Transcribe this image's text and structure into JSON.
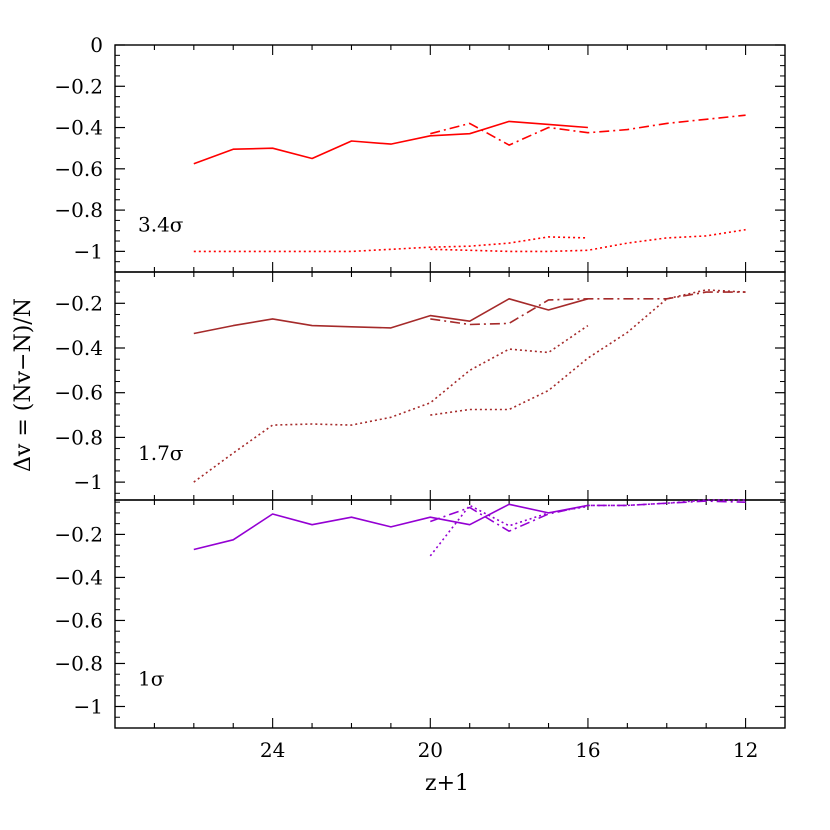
{
  "chart_data": {
    "type": "line",
    "xlabel": "z+1",
    "ylabel": "Δv = (Nv−N)/N",
    "xlim": [
      28,
      11
    ],
    "x_ticks": [
      {
        "value": 24,
        "label": "24"
      },
      {
        "value": 20,
        "label": "20"
      },
      {
        "value": 16,
        "label": "16"
      },
      {
        "value": 12,
        "label": "12"
      }
    ],
    "panels": [
      {
        "label": "3.4σ",
        "color": "#ff0000",
        "ylim": [
          -1.1,
          0
        ],
        "y_ticks": [
          {
            "value": 0,
            "label": "0"
          },
          {
            "value": -0.2,
            "label": "−0.2"
          },
          {
            "value": -0.4,
            "label": "−0.4"
          },
          {
            "value": -0.6,
            "label": "−0.6"
          },
          {
            "value": -0.8,
            "label": "−0.8"
          },
          {
            "value": -1,
            "label": "−1"
          }
        ],
        "series": [
          {
            "style": "solid",
            "x": [
              26,
              25,
              24,
              23,
              22,
              21,
              20,
              19,
              18,
              17,
              16
            ],
            "y": [
              -0.575,
              -0.505,
              -0.5,
              -0.55,
              -0.465,
              -0.48,
              -0.44,
              -0.43,
              -0.37,
              -0.385,
              -0.4
            ]
          },
          {
            "style": "dashdot",
            "x": [
              20,
              19,
              18,
              17,
              16,
              15,
              14,
              13,
              12
            ],
            "y": [
              -0.43,
              -0.38,
              -0.485,
              -0.4,
              -0.425,
              -0.41,
              -0.38,
              -0.36,
              -0.34
            ]
          },
          {
            "style": "dotted",
            "x": [
              26,
              25,
              24,
              23,
              22,
              21,
              20,
              19,
              18,
              17,
              16
            ],
            "y": [
              -1.0,
              -1.0,
              -1.0,
              -1.0,
              -1.0,
              -0.99,
              -0.98,
              -0.975,
              -0.96,
              -0.93,
              -0.935
            ]
          },
          {
            "style": "dotted",
            "x": [
              20,
              19,
              18,
              17,
              16,
              15,
              14,
              13,
              12
            ],
            "y": [
              -0.99,
              -0.995,
              -1.0,
              -1.0,
              -0.995,
              -0.96,
              -0.935,
              -0.925,
              -0.895
            ]
          }
        ]
      },
      {
        "label": "1.7σ",
        "color": "#a52a2a",
        "ylim": [
          -1.08,
          -0.06
        ],
        "y_ticks": [
          {
            "value": -0.2,
            "label": "−0.2"
          },
          {
            "value": -0.4,
            "label": "−0.4"
          },
          {
            "value": -0.6,
            "label": "−0.6"
          },
          {
            "value": -0.8,
            "label": "−0.8"
          },
          {
            "value": -1,
            "label": "−1"
          }
        ],
        "series": [
          {
            "style": "solid",
            "x": [
              26,
              25,
              24,
              23,
              22,
              21,
              20,
              19,
              18,
              17,
              16
            ],
            "y": [
              -0.335,
              -0.3,
              -0.27,
              -0.3,
              -0.305,
              -0.31,
              -0.255,
              -0.28,
              -0.18,
              -0.23,
              -0.18
            ]
          },
          {
            "style": "dashdot",
            "x": [
              20,
              19,
              18,
              17,
              16,
              15,
              14,
              13,
              12
            ],
            "y": [
              -0.27,
              -0.295,
              -0.29,
              -0.185,
              -0.18,
              -0.18,
              -0.18,
              -0.15,
              -0.15
            ]
          },
          {
            "style": "dotted",
            "x": [
              26,
              25,
              24,
              23,
              22,
              21,
              20,
              19,
              18,
              17,
              16
            ],
            "y": [
              -1.0,
              -0.87,
              -0.745,
              -0.74,
              -0.745,
              -0.71,
              -0.645,
              -0.5,
              -0.405,
              -0.42,
              -0.3
            ]
          },
          {
            "style": "dotted",
            "x": [
              20,
              19,
              18,
              17,
              16,
              15,
              14,
              13,
              12
            ],
            "y": [
              -0.7,
              -0.675,
              -0.675,
              -0.59,
              -0.445,
              -0.33,
              -0.18,
              -0.14,
              -0.15
            ]
          }
        ]
      },
      {
        "label": "1σ",
        "color": "#9400d3",
        "ylim": [
          -1.1,
          -0.04
        ],
        "y_ticks": [
          {
            "value": -0.2,
            "label": "−0.2"
          },
          {
            "value": -0.4,
            "label": "−0.4"
          },
          {
            "value": -0.6,
            "label": "−0.6"
          },
          {
            "value": -0.8,
            "label": "−0.8"
          },
          {
            "value": -1,
            "label": "−1"
          }
        ],
        "series": [
          {
            "style": "solid",
            "x": [
              26,
              25,
              24,
              23,
              22,
              21,
              20,
              19,
              18,
              17,
              16
            ],
            "y": [
              -0.27,
              -0.225,
              -0.105,
              -0.155,
              -0.12,
              -0.165,
              -0.12,
              -0.155,
              -0.06,
              -0.1,
              -0.065
            ]
          },
          {
            "style": "dashdot",
            "x": [
              20,
              19,
              18,
              17,
              16,
              15,
              14,
              13,
              12
            ],
            "y": [
              -0.14,
              -0.075,
              -0.185,
              -0.105,
              -0.065,
              -0.065,
              -0.055,
              -0.045,
              -0.05
            ]
          },
          {
            "style": "dotted",
            "x": [
              20,
              19,
              18,
              17,
              16
            ],
            "y": [
              -0.3,
              -0.065,
              -0.16,
              -0.1,
              -0.07
            ]
          },
          {
            "style": "dotted",
            "x": [
              16,
              15,
              14,
              13,
              12
            ],
            "y": [
              -0.065,
              -0.065,
              -0.055,
              -0.04,
              -0.04
            ]
          }
        ]
      }
    ]
  }
}
